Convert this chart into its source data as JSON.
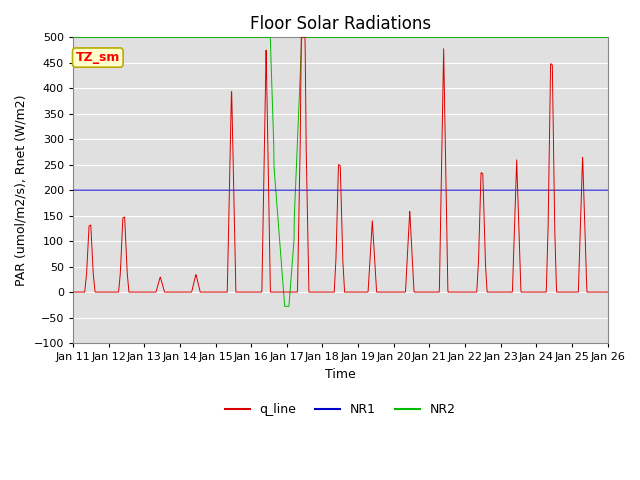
{
  "title": "Floor Solar Radiations",
  "xlabel": "Time",
  "ylabel": "PAR (umol/m2/s), Rnet (W/m2)",
  "ylim": [
    -100,
    500
  ],
  "yticks": [
    -100,
    -50,
    0,
    50,
    100,
    150,
    200,
    250,
    300,
    350,
    400,
    450,
    500
  ],
  "xtick_labels": [
    "Jan 11",
    "Jan 12",
    "Jan 13",
    "Jan 14",
    "Jan 15",
    "Jan 16",
    "Jan 17",
    "Jan 18",
    "Jan 19",
    "Jan 20",
    "Jan 21",
    "Jan 22",
    "Jan 23",
    "Jan 24",
    "Jan 25",
    "Jan 26"
  ],
  "line_colors": {
    "q_line": "#dd0000",
    "NR1": "#0000cc",
    "NR2": "#00bb00"
  },
  "background_color": "#e0e0e0",
  "annotation_text": "TZ_sm",
  "annotation_bg": "#ffffcc",
  "annotation_border": "#bbaa00",
  "title_fontsize": 12,
  "axis_fontsize": 9,
  "tick_fontsize": 8,
  "legend_fontsize": 9
}
